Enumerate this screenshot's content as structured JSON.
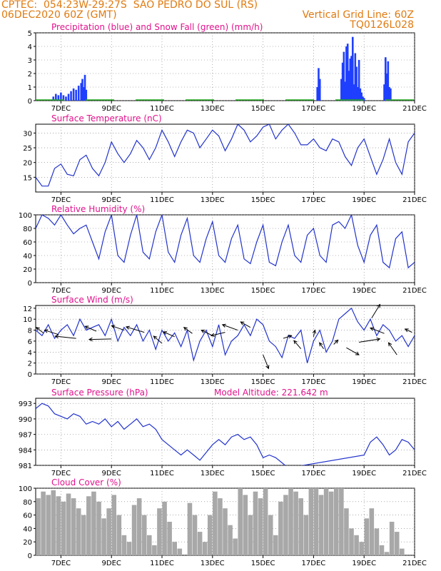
{
  "header": {
    "line1_left": "CPTEC:  054:23W-29:27S  SAO PEDRO DO SUL (RS)",
    "line2_left": "06DEC2020 60Z (GMT)",
    "line2_right": "Vertical Grid Line: 60Z",
    "line3_right": "TQ0126L028",
    "color": "#e07a10"
  },
  "x_ticks": [
    "7DEC",
    "9DEC",
    "11DEC",
    "13DEC",
    "15DEC",
    "17DEC",
    "19DEC",
    "21DEC"
  ],
  "x_tick_pos": [
    1,
    3,
    5,
    7,
    9,
    11,
    13,
    15
  ],
  "x_range": [
    0,
    15
  ],
  "model_altitude_label": "Model Altitude: 221.642 m",
  "title_color": "#e0128c",
  "chart_data": [
    {
      "type": "bar",
      "id": "precip",
      "title": "Precipitation (blue) and Snow Fall (green) (mm/h)",
      "ylim": [
        0,
        5
      ],
      "yticks": [
        0,
        1,
        2,
        3,
        4,
        5
      ],
      "grid": true,
      "color": "#1f3fff",
      "snow_color": "#22aa22",
      "x": [
        0.7,
        0.8,
        0.9,
        1.0,
        1.1,
        1.2,
        1.3,
        1.4,
        1.5,
        1.6,
        1.7,
        1.8,
        1.85,
        1.9,
        1.95,
        2.0,
        11.15,
        11.2,
        11.25,
        12.1,
        12.15,
        12.2,
        12.25,
        12.3,
        12.35,
        12.4,
        12.45,
        12.5,
        12.55,
        12.6,
        12.65,
        12.7,
        12.75,
        12.8,
        12.85,
        12.9,
        12.95,
        13.0,
        13.8,
        13.85,
        13.9,
        13.95,
        14.0,
        14.05
      ],
      "values": [
        0.3,
        0.5,
        0.4,
        0.6,
        0.4,
        0.3,
        0.5,
        0.7,
        0.9,
        0.8,
        1.1,
        1.3,
        1.6,
        1.0,
        1.9,
        0.8,
        1.0,
        2.4,
        1.6,
        1.6,
        2.8,
        3.6,
        1.4,
        4.0,
        4.2,
        2.2,
        3.1,
        3.3,
        4.7,
        1.2,
        3.5,
        2.5,
        1.0,
        3.0,
        0.9,
        0.6,
        0.3,
        0.2,
        1.2,
        3.2,
        2.0,
        2.9,
        1.0,
        0.9
      ]
    },
    {
      "type": "line",
      "id": "temp",
      "title": "Surface Temperature (nC)",
      "ylim": [
        10,
        33
      ],
      "yticks": [
        15,
        20,
        25,
        30
      ],
      "grid": true,
      "color": "#2233cc",
      "x": [
        0,
        0.25,
        0.5,
        0.75,
        1.0,
        1.25,
        1.5,
        1.75,
        2.0,
        2.25,
        2.5,
        2.75,
        3.0,
        3.25,
        3.5,
        3.75,
        4.0,
        4.25,
        4.5,
        4.75,
        5.0,
        5.25,
        5.5,
        5.75,
        6.0,
        6.25,
        6.5,
        6.75,
        7.0,
        7.25,
        7.5,
        7.75,
        8.0,
        8.25,
        8.5,
        8.75,
        9.0,
        9.25,
        9.5,
        9.75,
        10.0,
        10.25,
        10.5,
        10.75,
        11.0,
        11.25,
        11.5,
        11.75,
        12.0,
        12.25,
        12.5,
        12.75,
        13.0,
        13.25,
        13.5,
        13.75,
        14.0,
        14.25,
        14.5,
        14.75,
        15.0
      ],
      "values": [
        15,
        12,
        12,
        18,
        19.5,
        16,
        15.5,
        21,
        22.5,
        18,
        15.5,
        20,
        27,
        23,
        20,
        23,
        27.5,
        25,
        21,
        25,
        31,
        27,
        22,
        27,
        31,
        30,
        25,
        28,
        31,
        29,
        24,
        28,
        33,
        31,
        27,
        29,
        32,
        33,
        28,
        31,
        33,
        30,
        26,
        26,
        28,
        25,
        24,
        28,
        27,
        22,
        19,
        25,
        28,
        22,
        16,
        21,
        28,
        20,
        16,
        27,
        30
      ]
    },
    {
      "type": "line",
      "id": "rh",
      "title": "Relative Humidity (%)",
      "ylim": [
        0,
        100
      ],
      "yticks": [
        0,
        20,
        40,
        60,
        80,
        100
      ],
      "grid": true,
      "color": "#2233cc",
      "x": [
        0,
        0.25,
        0.5,
        0.75,
        1.0,
        1.25,
        1.5,
        1.75,
        2.0,
        2.25,
        2.5,
        2.75,
        3.0,
        3.25,
        3.5,
        3.75,
        4.0,
        4.25,
        4.5,
        4.75,
        5.0,
        5.25,
        5.5,
        5.75,
        6.0,
        6.25,
        6.5,
        6.75,
        7.0,
        7.25,
        7.5,
        7.75,
        8.0,
        8.25,
        8.5,
        8.75,
        9.0,
        9.25,
        9.5,
        9.75,
        10.0,
        10.25,
        10.5,
        10.75,
        11.0,
        11.25,
        11.5,
        11.75,
        12.0,
        12.25,
        12.5,
        12.75,
        13.0,
        13.25,
        13.5,
        13.75,
        14.0,
        14.25,
        14.5,
        14.75,
        15.0
      ],
      "values": [
        80,
        100,
        95,
        85,
        100,
        85,
        72,
        80,
        85,
        60,
        35,
        75,
        100,
        40,
        30,
        70,
        100,
        45,
        35,
        75,
        100,
        45,
        30,
        70,
        95,
        40,
        30,
        65,
        90,
        40,
        30,
        65,
        85,
        35,
        28,
        60,
        85,
        30,
        25,
        60,
        85,
        40,
        30,
        70,
        80,
        40,
        30,
        85,
        90,
        80,
        100,
        55,
        30,
        70,
        85,
        30,
        22,
        65,
        75,
        22,
        30
      ]
    },
    {
      "type": "line",
      "id": "wind",
      "title": "Surface Wind (m/s)",
      "ylim": [
        0,
        12.5
      ],
      "yticks": [
        0,
        2,
        4,
        6,
        8,
        10,
        12
      ],
      "grid": true,
      "color": "#2233cc",
      "x": [
        0,
        0.25,
        0.5,
        0.75,
        1.0,
        1.25,
        1.5,
        1.75,
        2.0,
        2.25,
        2.5,
        2.75,
        3.0,
        3.25,
        3.5,
        3.75,
        4.0,
        4.25,
        4.5,
        4.75,
        5.0,
        5.25,
        5.5,
        5.75,
        6.0,
        6.25,
        6.5,
        6.75,
        7.0,
        7.25,
        7.5,
        7.75,
        8.0,
        8.25,
        8.5,
        8.75,
        9.0,
        9.25,
        9.5,
        9.75,
        10.0,
        10.25,
        10.5,
        10.75,
        11.0,
        11.25,
        11.5,
        11.75,
        12.0,
        12.25,
        12.5,
        12.75,
        13.0,
        13.25,
        13.5,
        13.75,
        14.0,
        14.25,
        14.5,
        14.75,
        15.0
      ],
      "values": [
        8,
        7,
        9,
        6.5,
        8,
        9,
        7,
        10,
        8,
        8.5,
        9,
        7,
        10,
        6,
        8.5,
        7,
        9,
        6,
        8,
        4.5,
        8,
        6,
        7.5,
        5,
        8,
        2.5,
        6,
        8,
        5,
        9,
        3.5,
        6,
        7,
        9,
        7,
        10,
        9,
        6,
        5,
        3,
        7,
        6.5,
        8,
        2,
        6,
        8,
        4,
        6,
        10,
        11,
        12,
        9.5,
        8,
        10,
        7,
        9,
        8,
        6,
        7,
        5,
        7
      ],
      "vectors": [
        {
          "x": 0.3,
          "y": 7.5,
          "dx": -0.5,
          "dy": 1.0
        },
        {
          "x": 0.9,
          "y": 7.2,
          "dx": -1.0,
          "dy": 0.8
        },
        {
          "x": 1.6,
          "y": 6.5,
          "dx": -1.5,
          "dy": 0.4
        },
        {
          "x": 2.4,
          "y": 7.8,
          "dx": -0.8,
          "dy": 0.9
        },
        {
          "x": 3.0,
          "y": 6.4,
          "dx": -1.6,
          "dy": -0.1
        },
        {
          "x": 3.5,
          "y": 8.0,
          "dx": -0.9,
          "dy": 0.8
        },
        {
          "x": 4.3,
          "y": 7.6,
          "dx": -1.3,
          "dy": 1.0
        },
        {
          "x": 5.0,
          "y": 5.6,
          "dx": -0.6,
          "dy": 1.3
        },
        {
          "x": 5.5,
          "y": 6.8,
          "dx": -0.8,
          "dy": 0.9
        },
        {
          "x": 6.2,
          "y": 7.4,
          "dx": -0.6,
          "dy": 1.1
        },
        {
          "x": 7.0,
          "y": 7.0,
          "dx": -0.8,
          "dy": 1.0
        },
        {
          "x": 7.5,
          "y": 7.6,
          "dx": -1.0,
          "dy": -0.6
        },
        {
          "x": 8.0,
          "y": 8.0,
          "dx": -1.1,
          "dy": 1.0
        },
        {
          "x": 8.5,
          "y": 8.5,
          "dx": -0.7,
          "dy": 1.0
        },
        {
          "x": 9.0,
          "y": 3.5,
          "dx": 0.4,
          "dy": -2.5
        },
        {
          "x": 9.8,
          "y": 6.5,
          "dx": 0.6,
          "dy": 0.5
        },
        {
          "x": 10.5,
          "y": 4.6,
          "dx": -0.5,
          "dy": 1.5
        },
        {
          "x": 11.0,
          "y": 6.8,
          "dx": 0.1,
          "dy": 1.2
        },
        {
          "x": 11.4,
          "y": 4.6,
          "dx": -0.3,
          "dy": 1.1
        },
        {
          "x": 11.8,
          "y": 5.4,
          "dx": 0.3,
          "dy": 0.8
        },
        {
          "x": 12.3,
          "y": 4.8,
          "dx": 0.9,
          "dy": -1.3
        },
        {
          "x": 12.8,
          "y": 5.8,
          "dx": 1.5,
          "dy": 0.6
        },
        {
          "x": 13.3,
          "y": 10.2,
          "dx": 0.6,
          "dy": 2.5
        },
        {
          "x": 13.8,
          "y": 7.4,
          "dx": -1.0,
          "dy": 1.0
        },
        {
          "x": 14.3,
          "y": 3.5,
          "dx": -0.6,
          "dy": 2.2
        },
        {
          "x": 14.9,
          "y": 7.6,
          "dx": -0.5,
          "dy": 0.6
        }
      ]
    },
    {
      "type": "line",
      "id": "press",
      "title": "Surface Pressure (hPa)",
      "ylim": [
        981,
        994
      ],
      "yticks": [
        981,
        984,
        987,
        990,
        993
      ],
      "grid": true,
      "color": "#2233cc",
      "x": [
        0,
        0.25,
        0.5,
        0.75,
        1.0,
        1.25,
        1.5,
        1.75,
        2.0,
        2.25,
        2.5,
        2.75,
        3.0,
        3.25,
        3.5,
        3.75,
        4.0,
        4.25,
        4.5,
        4.75,
        5.0,
        5.25,
        5.5,
        5.75,
        6.0,
        6.25,
        6.5,
        6.75,
        7.0,
        7.25,
        7.5,
        7.75,
        8.0,
        8.25,
        8.5,
        8.75,
        9.0,
        9.25,
        9.5,
        9.75,
        10.0,
        13.0,
        13.25,
        13.5,
        13.75,
        14.0,
        14.25,
        14.5,
        14.75,
        15.0
      ],
      "values": [
        992,
        993,
        992.5,
        991,
        990.5,
        990,
        991,
        990.5,
        989,
        989.5,
        989,
        990,
        988.5,
        989.5,
        988,
        989,
        990,
        988.5,
        989,
        988,
        986,
        985,
        984,
        983,
        984,
        983,
        982,
        983.5,
        985,
        986,
        985,
        986.5,
        987,
        986,
        986.5,
        985,
        982.5,
        983,
        982.5,
        981.5,
        980.5,
        983,
        985.5,
        986.5,
        985,
        983,
        984,
        986,
        985.5,
        984
      ]
    },
    {
      "type": "bar",
      "id": "cloud",
      "title": "Cloud Cover (%)",
      "ylim": [
        0,
        100
      ],
      "yticks": [
        0,
        20,
        40,
        60,
        80,
        100
      ],
      "grid": true,
      "color": "#a8a8a8",
      "x": [
        0.1,
        0.3,
        0.5,
        0.7,
        0.9,
        1.1,
        1.3,
        1.5,
        1.7,
        1.9,
        2.1,
        2.3,
        2.5,
        2.7,
        2.9,
        3.1,
        3.3,
        3.5,
        3.7,
        3.9,
        4.1,
        4.3,
        4.5,
        4.7,
        4.9,
        5.1,
        5.3,
        5.5,
        5.7,
        5.9,
        6.1,
        6.3,
        6.5,
        6.7,
        6.9,
        7.1,
        7.3,
        7.5,
        7.7,
        7.9,
        8.1,
        8.3,
        8.5,
        8.7,
        8.9,
        9.1,
        9.3,
        9.5,
        9.7,
        9.9,
        10.1,
        10.3,
        10.5,
        10.7,
        10.9,
        11.1,
        11.3,
        11.5,
        11.7,
        11.9,
        12.1,
        12.3,
        12.5,
        12.7,
        12.9,
        13.1,
        13.3,
        13.5,
        13.7,
        13.9,
        14.1,
        14.3,
        14.5,
        14.7,
        14.9
      ],
      "values": [
        85,
        95,
        90,
        97,
        88,
        80,
        92,
        85,
        70,
        60,
        88,
        95,
        80,
        55,
        70,
        90,
        60,
        30,
        20,
        75,
        85,
        60,
        30,
        15,
        70,
        80,
        50,
        20,
        10,
        0,
        78,
        60,
        35,
        20,
        60,
        95,
        85,
        70,
        45,
        25,
        100,
        90,
        60,
        95,
        85,
        100,
        60,
        30,
        80,
        90,
        100,
        95,
        85,
        60,
        100,
        100,
        90,
        100,
        95,
        100,
        100,
        70,
        40,
        30,
        20,
        55,
        70,
        40,
        15,
        5,
        50,
        35,
        10,
        0,
        0
      ]
    }
  ]
}
